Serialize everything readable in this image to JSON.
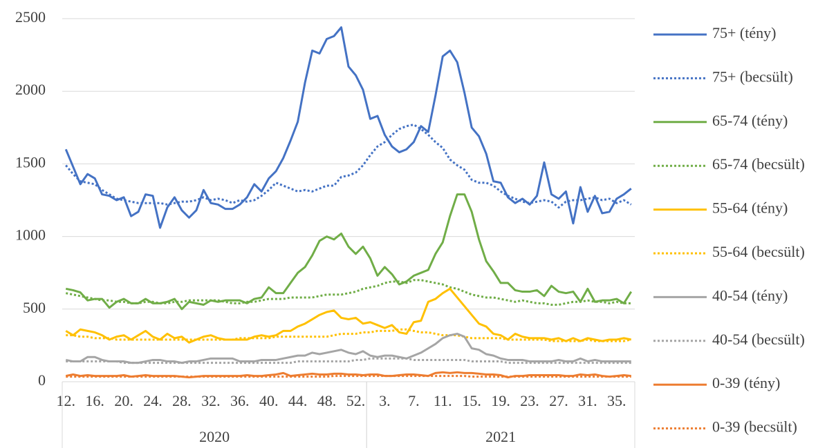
{
  "chart_data": {
    "type": "line",
    "categories": [
      "12.",
      null,
      null,
      null,
      "16.",
      null,
      null,
      null,
      "20.",
      null,
      null,
      null,
      "24.",
      null,
      null,
      null,
      "28.",
      null,
      null,
      null,
      "32.",
      null,
      null,
      null,
      "36.",
      null,
      null,
      null,
      "40.",
      null,
      null,
      null,
      "44.",
      null,
      null,
      null,
      "48.",
      null,
      null,
      null,
      "52.",
      null,
      null,
      null,
      "3.",
      null,
      null,
      null,
      "7.",
      null,
      null,
      null,
      "11.",
      null,
      null,
      null,
      "15.",
      null,
      null,
      null,
      "19.",
      null,
      null,
      null,
      "23.",
      null,
      null,
      null,
      "27.",
      null,
      null,
      null,
      "31.",
      null,
      null,
      null,
      "35.",
      null,
      null
    ],
    "x_groups": [
      {
        "label": "2020",
        "from": 0,
        "to": 41
      },
      {
        "label": "2021",
        "from": 42,
        "to": 78
      }
    ],
    "ylim": [
      0,
      2500
    ],
    "yticks": [
      0,
      500,
      1000,
      1500,
      2000,
      2500
    ],
    "grid": true,
    "legend": "right",
    "series": [
      {
        "name": "75+ (tény)",
        "color": "#4472c4",
        "style": "solid",
        "values": [
          1600,
          1480,
          1360,
          1430,
          1400,
          1290,
          1280,
          1250,
          1270,
          1140,
          1170,
          1290,
          1280,
          1060,
          1200,
          1270,
          1180,
          1130,
          1180,
          1320,
          1230,
          1220,
          1190,
          1190,
          1220,
          1270,
          1360,
          1310,
          1400,
          1450,
          1540,
          1660,
          1790,
          2060,
          2280,
          2260,
          2360,
          2380,
          2440,
          2170,
          2110,
          2010,
          1810,
          1830,
          1700,
          1620,
          1580,
          1600,
          1650,
          1760,
          1720,
          1970,
          2240,
          2280,
          2200,
          1990,
          1750,
          1690,
          1570,
          1380,
          1370,
          1270,
          1230,
          1260,
          1220,
          1280,
          1510,
          1290,
          1260,
          1310,
          1090,
          1340,
          1170,
          1280,
          1160,
          1170,
          1260,
          1290,
          1330
        ]
      },
      {
        "name": "75+ (becsült)",
        "color": "#4472c4",
        "style": "dotted",
        "values": [
          1490,
          1430,
          1380,
          1370,
          1360,
          1320,
          1290,
          1260,
          1250,
          1240,
          1230,
          1230,
          1230,
          1230,
          1220,
          1230,
          1240,
          1240,
          1250,
          1270,
          1250,
          1260,
          1250,
          1230,
          1250,
          1240,
          1250,
          1280,
          1320,
          1370,
          1350,
          1330,
          1310,
          1320,
          1310,
          1330,
          1350,
          1350,
          1410,
          1420,
          1440,
          1490,
          1560,
          1620,
          1650,
          1700,
          1740,
          1760,
          1770,
          1740,
          1700,
          1650,
          1610,
          1530,
          1490,
          1460,
          1390,
          1370,
          1370,
          1350,
          1310,
          1280,
          1260,
          1240,
          1230,
          1240,
          1250,
          1240,
          1200,
          1240,
          1250,
          1250,
          1260,
          1270,
          1250,
          1260,
          1230,
          1250,
          1220
        ]
      },
      {
        "name": "65-74 (tény)",
        "color": "#70ad47",
        "style": "solid",
        "values": [
          640,
          630,
          615,
          560,
          570,
          570,
          510,
          550,
          570,
          540,
          540,
          570,
          540,
          540,
          550,
          570,
          500,
          550,
          540,
          530,
          560,
          550,
          560,
          560,
          560,
          540,
          570,
          580,
          650,
          610,
          610,
          680,
          750,
          790,
          870,
          970,
          1000,
          980,
          1020,
          930,
          880,
          930,
          850,
          730,
          790,
          740,
          670,
          690,
          730,
          750,
          770,
          880,
          960,
          1140,
          1290,
          1290,
          1170,
          980,
          830,
          760,
          680,
          680,
          630,
          620,
          620,
          630,
          590,
          660,
          620,
          610,
          620,
          550,
          640,
          550,
          560,
          560,
          570,
          540,
          620
        ]
      },
      {
        "name": "65-74 (becsült)",
        "color": "#70ad47",
        "style": "dotted",
        "values": [
          610,
          600,
          590,
          580,
          570,
          560,
          560,
          550,
          550,
          540,
          540,
          550,
          550,
          540,
          540,
          550,
          550,
          560,
          560,
          560,
          560,
          560,
          550,
          540,
          540,
          550,
          550,
          560,
          570,
          570,
          570,
          580,
          580,
          580,
          580,
          590,
          600,
          600,
          600,
          610,
          620,
          640,
          650,
          660,
          680,
          690,
          690,
          680,
          700,
          700,
          690,
          680,
          670,
          650,
          640,
          620,
          600,
          590,
          580,
          580,
          570,
          560,
          550,
          560,
          550,
          540,
          540,
          530,
          530,
          540,
          550,
          550,
          560,
          550,
          550,
          540,
          550,
          540,
          540
        ]
      },
      {
        "name": "55-64 (tény)",
        "color": "#ffc000",
        "style": "solid",
        "values": [
          350,
          320,
          360,
          350,
          340,
          320,
          290,
          310,
          320,
          290,
          320,
          350,
          310,
          290,
          330,
          300,
          310,
          270,
          290,
          310,
          320,
          300,
          290,
          290,
          290,
          290,
          310,
          320,
          310,
          320,
          350,
          350,
          380,
          400,
          430,
          460,
          480,
          490,
          440,
          430,
          440,
          400,
          410,
          390,
          370,
          390,
          340,
          330,
          410,
          420,
          550,
          570,
          610,
          640,
          580,
          520,
          460,
          400,
          380,
          330,
          320,
          290,
          330,
          310,
          300,
          300,
          300,
          290,
          300,
          280,
          300,
          280,
          300,
          290,
          280,
          290,
          290,
          300,
          290
        ]
      },
      {
        "name": "55-64 (becsült)",
        "color": "#ffc000",
        "style": "dotted",
        "values": [
          320,
          320,
          310,
          310,
          300,
          300,
          300,
          290,
          290,
          290,
          290,
          290,
          290,
          290,
          290,
          290,
          290,
          290,
          290,
          290,
          290,
          290,
          290,
          290,
          300,
          300,
          300,
          300,
          300,
          310,
          310,
          310,
          310,
          310,
          310,
          310,
          310,
          320,
          330,
          330,
          330,
          340,
          340,
          350,
          350,
          350,
          360,
          360,
          350,
          340,
          340,
          330,
          320,
          320,
          320,
          310,
          300,
          300,
          300,
          300,
          300,
          290,
          290,
          290,
          290,
          290,
          290,
          280,
          280,
          280,
          280,
          280,
          290,
          280,
          280,
          280,
          280,
          280,
          290
        ]
      },
      {
        "name": "40-54 (tény)",
        "color": "#a5a5a5",
        "style": "solid",
        "values": [
          150,
          140,
          140,
          170,
          170,
          150,
          140,
          140,
          140,
          130,
          130,
          140,
          150,
          150,
          140,
          140,
          130,
          140,
          140,
          150,
          160,
          160,
          160,
          160,
          140,
          140,
          140,
          150,
          150,
          150,
          160,
          170,
          180,
          180,
          200,
          190,
          200,
          210,
          220,
          200,
          190,
          210,
          180,
          170,
          180,
          180,
          170,
          160,
          180,
          200,
          230,
          260,
          300,
          320,
          330,
          310,
          230,
          220,
          190,
          180,
          160,
          150,
          150,
          150,
          140,
          140,
          140,
          140,
          150,
          140,
          140,
          160,
          140,
          150,
          140,
          140,
          140,
          140,
          140
        ]
      },
      {
        "name": "40-54 (becsült)",
        "color": "#a5a5a5",
        "style": "dotted",
        "values": [
          140,
          140,
          140,
          140,
          140,
          140,
          140,
          140,
          130,
          130,
          130,
          130,
          130,
          130,
          130,
          130,
          130,
          130,
          130,
          130,
          130,
          130,
          130,
          130,
          130,
          130,
          130,
          130,
          130,
          130,
          130,
          130,
          140,
          140,
          140,
          140,
          140,
          140,
          140,
          140,
          150,
          150,
          160,
          160,
          160,
          160,
          160,
          160,
          150,
          150,
          150,
          150,
          150,
          150,
          150,
          150,
          140,
          140,
          140,
          140,
          140,
          130,
          130,
          130,
          130,
          130,
          130,
          130,
          130,
          130,
          130,
          130,
          130,
          130,
          130,
          130,
          130,
          130,
          130
        ]
      },
      {
        "name": "0-39 (tény)",
        "color": "#ed7d31",
        "style": "solid",
        "values": [
          40,
          50,
          40,
          45,
          40,
          40,
          40,
          40,
          45,
          35,
          40,
          45,
          40,
          40,
          40,
          40,
          35,
          30,
          35,
          40,
          40,
          40,
          40,
          40,
          40,
          45,
          40,
          40,
          45,
          50,
          60,
          40,
          45,
          50,
          55,
          50,
          50,
          55,
          55,
          50,
          50,
          45,
          50,
          50,
          40,
          40,
          45,
          50,
          50,
          45,
          40,
          60,
          65,
          60,
          65,
          60,
          60,
          55,
          50,
          50,
          45,
          30,
          40,
          40,
          45,
          45,
          45,
          45,
          45,
          40,
          40,
          50,
          45,
          50,
          40,
          35,
          40,
          45,
          40
        ]
      },
      {
        "name": "0-39 (becsült)",
        "color": "#ed7d31",
        "style": "dotted",
        "values": [
          35,
          35,
          35,
          35,
          35,
          35,
          35,
          35,
          35,
          35,
          35,
          35,
          35,
          35,
          35,
          35,
          35,
          35,
          35,
          35,
          35,
          35,
          35,
          35,
          35,
          35,
          35,
          35,
          35,
          35,
          35,
          35,
          35,
          35,
          35,
          35,
          35,
          40,
          40,
          40,
          40,
          40,
          40,
          40,
          40,
          40,
          40,
          40,
          40,
          40,
          40,
          40,
          40,
          40,
          40,
          40,
          35,
          35,
          35,
          35,
          35,
          35,
          35,
          35,
          35,
          35,
          35,
          35,
          35,
          35,
          35,
          35,
          35,
          35,
          35,
          35,
          35,
          35,
          35
        ]
      }
    ]
  }
}
